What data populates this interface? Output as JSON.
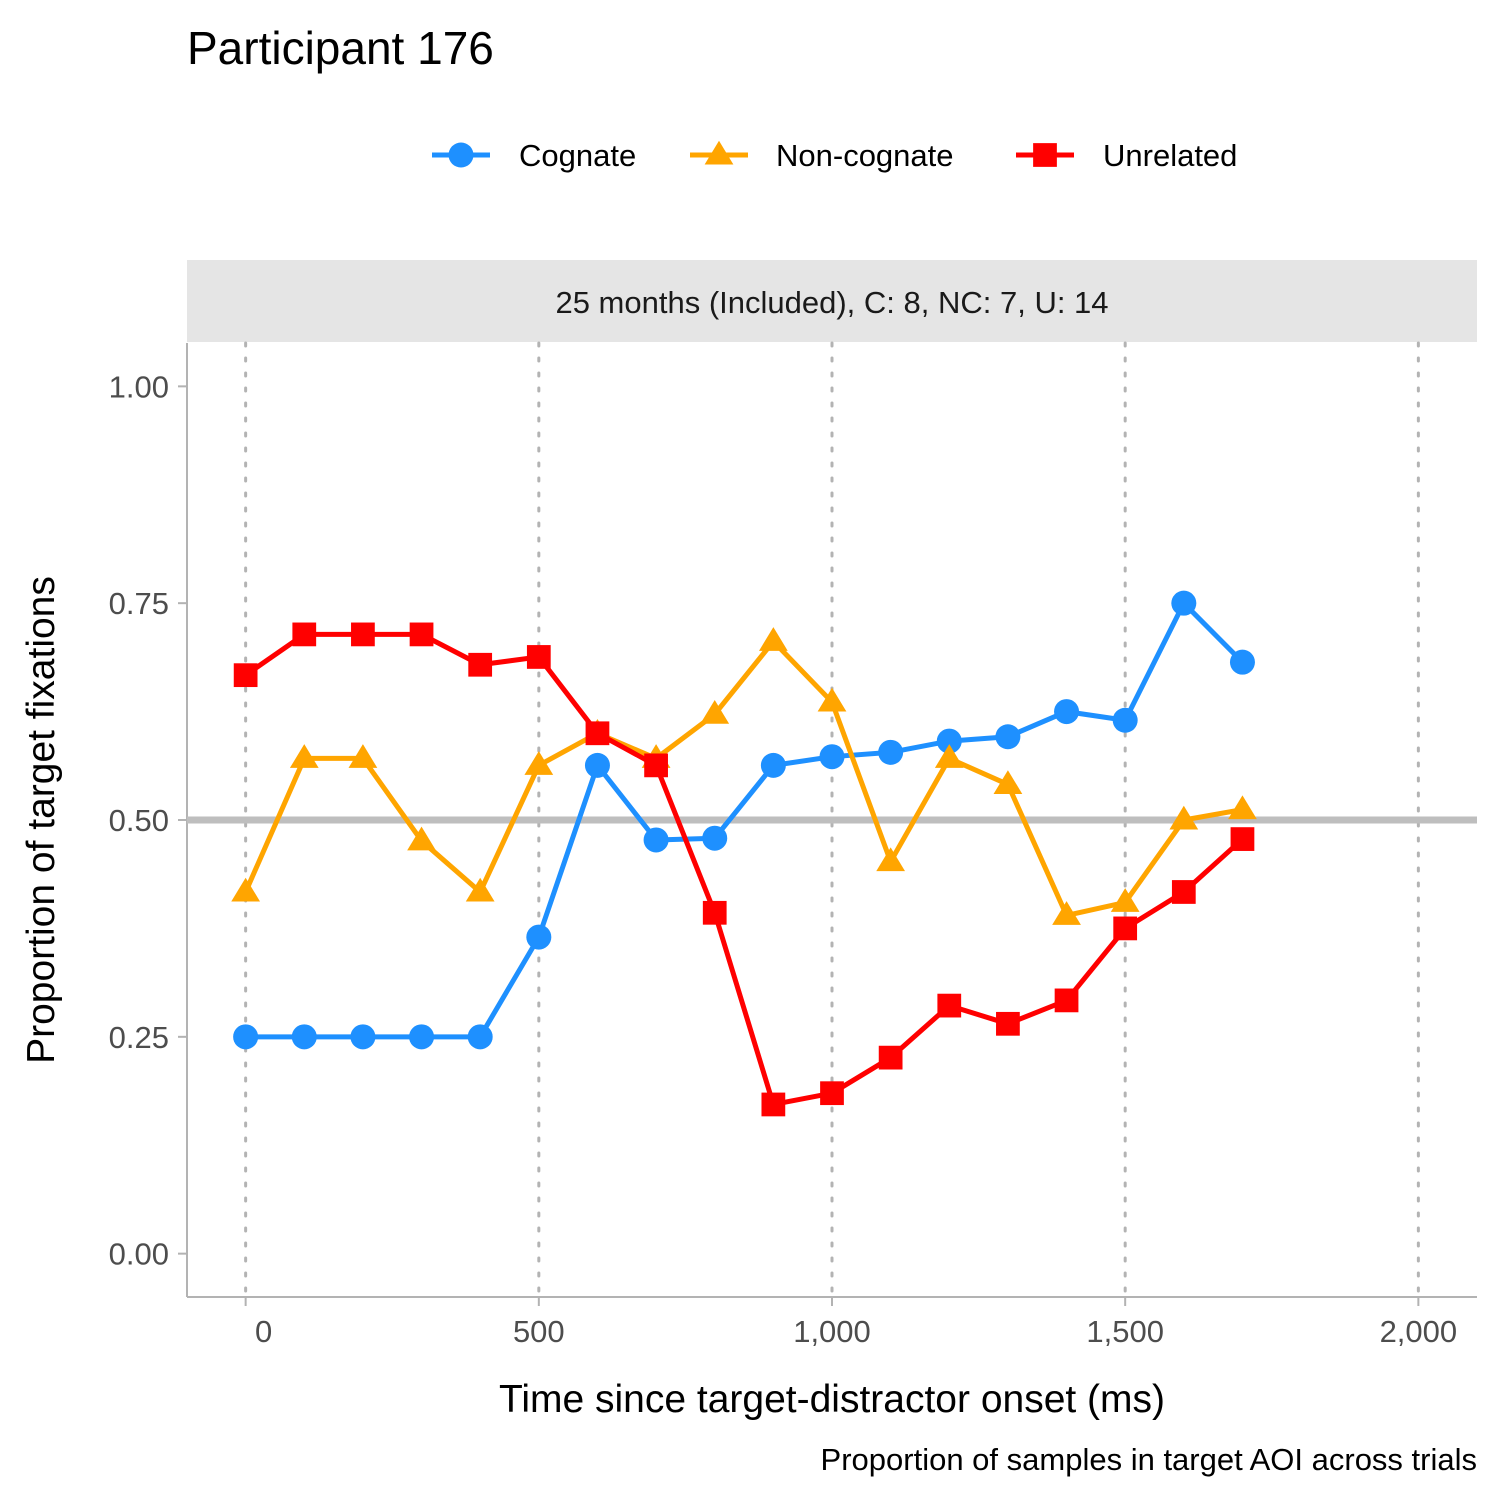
{
  "chart_data": {
    "type": "line",
    "title": "Participant 176",
    "facet_label": "25 months (Included), C: 8, NC: 7, U: 14",
    "xlabel": "Time since target-distractor onset (ms)",
    "ylabel": "Proportion of target fixations",
    "caption": "Proportion of samples in target AOI across trials",
    "xlim": [
      -100,
      2100
    ],
    "ylim": [
      -0.05,
      1.05
    ],
    "x_ticks": [
      0,
      500,
      1000,
      1500,
      2000
    ],
    "x_tick_labels": [
      "0",
      "500",
      "1,000",
      "1,500",
      "2,000"
    ],
    "y_ticks": [
      0,
      0.25,
      0.5,
      0.75,
      1.0
    ],
    "y_tick_labels": [
      "0.00",
      "0.25",
      "0.50",
      "0.75",
      "1.00"
    ],
    "reference_line_y": 0.5,
    "vertical_gridlines": "dotted, major x ticks",
    "legend_position": "top",
    "x": [
      0,
      100,
      200,
      300,
      400,
      500,
      600,
      700,
      800,
      900,
      1000,
      1100,
      1200,
      1300,
      1400,
      1500,
      1600,
      1700
    ],
    "series": [
      {
        "name": "Cognate",
        "marker": "circle",
        "color": "#1E90FF",
        "values": [
          0.25,
          0.25,
          0.25,
          0.25,
          0.25,
          0.365,
          0.563,
          0.477,
          0.479,
          0.563,
          0.573,
          0.578,
          0.591,
          0.596,
          0.625,
          0.615,
          0.75,
          0.682
        ]
      },
      {
        "name": "Non-cognate",
        "marker": "triangle",
        "color": "#FFA500",
        "values": [
          0.417,
          0.571,
          0.571,
          0.476,
          0.417,
          0.563,
          0.6,
          0.571,
          0.622,
          0.706,
          0.636,
          0.452,
          0.571,
          0.541,
          0.39,
          0.405,
          0.5,
          0.512
        ]
      },
      {
        "name": "Unrelated",
        "marker": "square",
        "color": "#FF0000",
        "values": [
          0.667,
          0.714,
          0.714,
          0.714,
          0.679,
          0.688,
          0.6,
          0.563,
          0.393,
          0.172,
          0.185,
          0.226,
          0.286,
          0.265,
          0.292,
          0.375,
          0.417,
          0.478
        ]
      }
    ]
  }
}
